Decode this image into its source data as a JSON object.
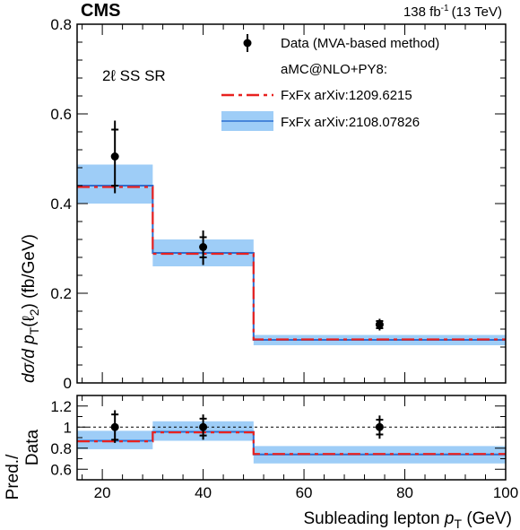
{
  "header": {
    "experiment": "CMS",
    "lumi_value": "138 fb",
    "lumi_exp": "-1",
    "lumi_energy": "(13 TeV)"
  },
  "region_label": {
    "main": "2ℓ SS SR"
  },
  "legend": {
    "data": "Data (MVA-based method)",
    "generator": "aMC@NLO+PY8:",
    "fxfx_old": "FxFx arXiv:1209.6215",
    "fxfx_new": "FxFx arXiv:2108.07826"
  },
  "axes": {
    "x_title_main": "Subleading lepton ",
    "x_title_var": "p",
    "x_title_sub": "T",
    "x_title_unit": " (GeV)",
    "y_title_main": "dσ/d p",
    "y_title_sub": "T",
    "y_title_arg": "(ℓ",
    "y_title_argsub": "2",
    "y_title_close": ")",
    "y_title_unit": "  (fb/GeV)",
    "ratio_title_line1": "Pred./",
    "ratio_title_line2": "Data"
  },
  "colors": {
    "data": "#000000",
    "fxfx_old": "#e8211f",
    "fxfx_new": "#2b6fd1",
    "band": "#9ecdf7"
  },
  "chart_data": [
    {
      "type": "line",
      "title": "",
      "xlabel": "Subleading lepton pT (GeV)",
      "ylabel": "dσ/d pT(ℓ2)  (fb/GeV)",
      "xlim": [
        15,
        100
      ],
      "ylim": [
        0,
        0.8
      ],
      "x_ticks": [
        20,
        40,
        60,
        80,
        100
      ],
      "y_ticks": [
        0,
        0.2,
        0.4,
        0.6,
        0.8
      ],
      "y_tick_labels": [
        "0",
        "0.2",
        "0.4",
        "0.6",
        "0.8"
      ],
      "bins": [
        [
          15,
          30
        ],
        [
          30,
          50
        ],
        [
          50,
          100
        ]
      ],
      "data_points": [
        {
          "x": 22.5,
          "y": 0.505,
          "stat_lo": 0.44,
          "stat_hi": 0.565,
          "tot_lo": 0.423,
          "tot_hi": 0.585
        },
        {
          "x": 40,
          "y": 0.303,
          "stat_lo": 0.28,
          "stat_hi": 0.325,
          "tot_lo": 0.263,
          "tot_hi": 0.34
        },
        {
          "x": 75,
          "y": 0.13,
          "stat_lo": 0.122,
          "stat_hi": 0.138,
          "tot_lo": 0.117,
          "tot_hi": 0.143
        }
      ],
      "series": [
        {
          "name": "FxFx arXiv:1209.6215",
          "values": [
            0.437,
            0.288,
            0.097
          ]
        },
        {
          "name": "FxFx arXiv:2108.07826",
          "values": [
            0.44,
            0.29,
            0.096
          ],
          "band_lo": [
            0.4,
            0.26,
            0.084
          ],
          "band_hi": [
            0.487,
            0.32,
            0.107
          ]
        }
      ],
      "legend_position": "top-right"
    },
    {
      "type": "line",
      "title": "",
      "xlabel": "Subleading lepton pT (GeV)",
      "ylabel": "Pred./Data",
      "xlim": [
        15,
        100
      ],
      "ylim": [
        0.5,
        1.3
      ],
      "x_ticks": [
        20,
        40,
        60,
        80,
        100
      ],
      "x_tick_labels": [
        "20",
        "40",
        "60",
        "80",
        "100"
      ],
      "y_ticks": [
        0.6,
        0.8,
        1.0,
        1.2
      ],
      "y_tick_labels": [
        "0.6",
        "0.8",
        "1",
        "1.2"
      ],
      "reference_line": 1.0,
      "data_points": [
        {
          "x": 22.5,
          "y": 1.0,
          "stat_lo": 0.88,
          "stat_hi": 1.12,
          "tot_lo": 0.85,
          "tot_hi": 1.16
        },
        {
          "x": 40,
          "y": 1.0,
          "stat_lo": 0.92,
          "stat_hi": 1.08,
          "tot_lo": 0.88,
          "tot_hi": 1.12
        },
        {
          "x": 75,
          "y": 1.0,
          "stat_lo": 0.93,
          "stat_hi": 1.07,
          "tot_lo": 0.89,
          "tot_hi": 1.11
        }
      ],
      "series": [
        {
          "name": "FxFx arXiv:1209.6215",
          "values": [
            0.865,
            0.95,
            0.745
          ]
        },
        {
          "name": "FxFx arXiv:2108.07826",
          "values": [
            0.87,
            0.955,
            0.74
          ],
          "band_lo": [
            0.79,
            0.87,
            0.655
          ],
          "band_hi": [
            0.965,
            1.055,
            0.82
          ]
        }
      ]
    }
  ]
}
